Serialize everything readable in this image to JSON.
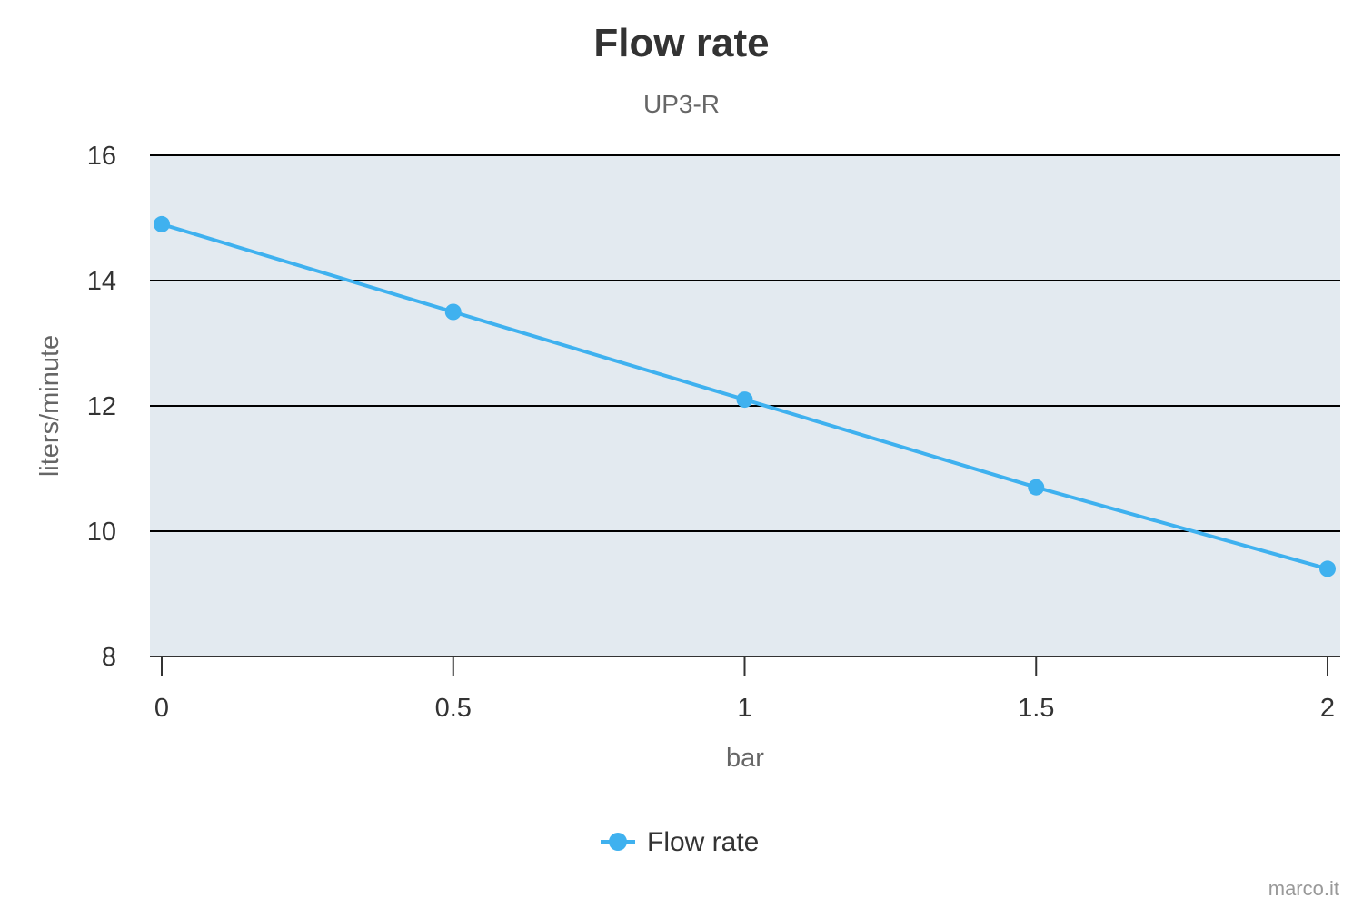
{
  "chart_data": {
    "type": "line",
    "title": "Flow rate",
    "subtitle": "UP3-R",
    "xlabel": "bar",
    "ylabel": "liters/minute",
    "x": [
      0,
      0.5,
      1,
      1.5,
      2
    ],
    "x_tick_labels": [
      "0",
      "0.5",
      "1",
      "1.5",
      "2"
    ],
    "y_tick_labels": [
      "8",
      "10",
      "12",
      "14",
      "16"
    ],
    "y_ticks": [
      8,
      10,
      12,
      14,
      16
    ],
    "xlim": [
      0,
      2
    ],
    "ylim": [
      8,
      16
    ],
    "grid": true,
    "legend_position": "bottom-center",
    "series": [
      {
        "name": "Flow rate",
        "values": [
          14.9,
          13.5,
          12.1,
          10.7,
          9.4
        ],
        "color": "#3fb1ef"
      }
    ],
    "plot_background": "#e3eaf0",
    "credit": "marco.it"
  }
}
